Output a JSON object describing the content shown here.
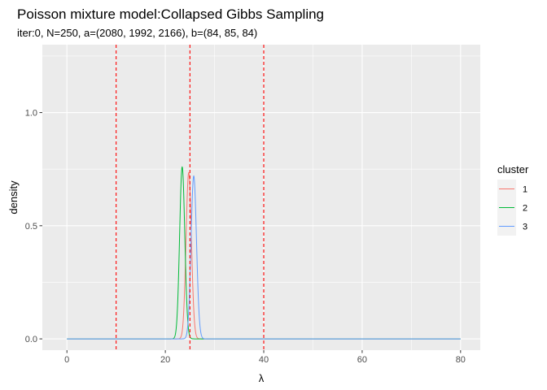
{
  "chart_data": {
    "type": "line",
    "title": "Poisson mixture model:Collapsed Gibbs Sampling",
    "subtitle": "iter:0, N=250, a=(2080, 1992, 2166), b=(84, 85, 84)",
    "xlabel": "λ",
    "ylabel": "density",
    "xlim": [
      -5,
      84
    ],
    "ylim": [
      -0.05,
      1.3
    ],
    "x_ticks": [
      0,
      20,
      40,
      60,
      80
    ],
    "x_tick_labels": [
      "0",
      "20",
      "40",
      "60",
      "80"
    ],
    "y_ticks": [
      0.0,
      0.5,
      1.0
    ],
    "y_tick_labels": [
      "0.0",
      "0.5",
      "1.0"
    ],
    "grid": true,
    "legend": {
      "title": "cluster",
      "position": "right"
    },
    "series": [
      {
        "name": "1",
        "color": "#F8766D",
        "shape": "gamma",
        "shape_param": 2080,
        "rate": 84
      },
      {
        "name": "2",
        "color": "#00BA38",
        "shape": "gamma",
        "shape_param": 1992,
        "rate": 85
      },
      {
        "name": "3",
        "color": "#619CFF",
        "shape": "gamma",
        "shape_param": 2166,
        "rate": 84
      }
    ],
    "vlines": {
      "x": [
        10,
        25,
        40
      ],
      "color": "#FF0000",
      "style": "dashed"
    }
  }
}
